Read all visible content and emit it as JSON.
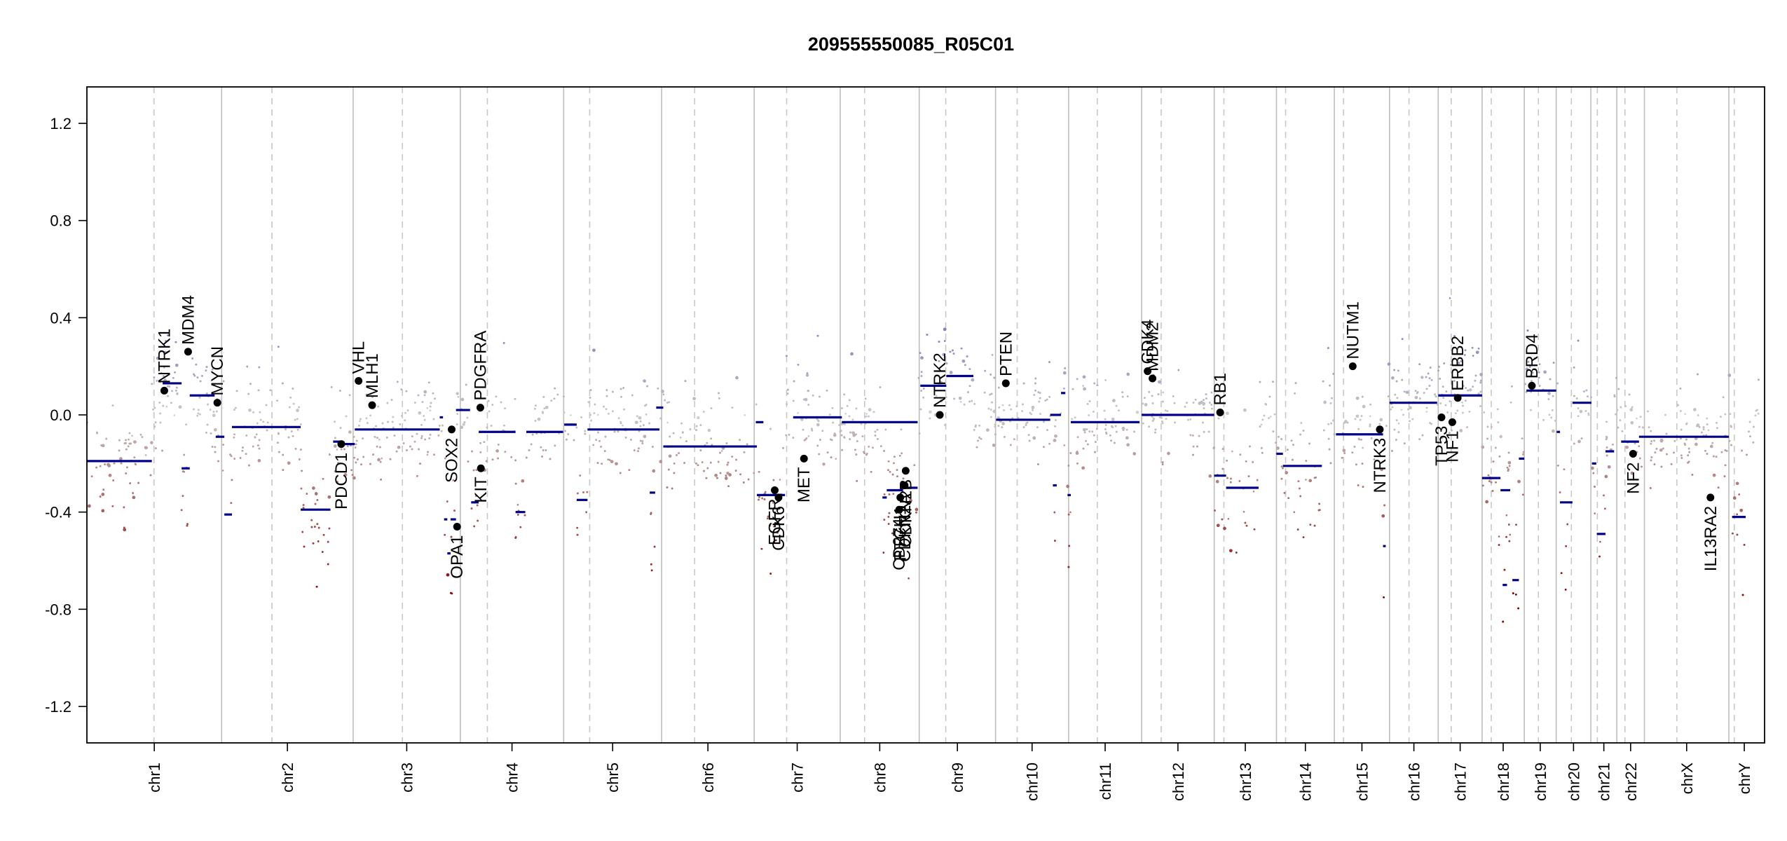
{
  "chart_data": {
    "type": "scatter",
    "title": "209555550085_R05C01",
    "xlabel": "",
    "ylabel": "",
    "ylim": [
      -1.35,
      1.35
    ],
    "yticks": [
      1.2,
      0.8,
      0.4,
      0.0,
      -0.4,
      -0.8,
      -1.2
    ],
    "ytick_labels": [
      "1.2",
      "0.8",
      "0.4",
      "0.0",
      "-0.4",
      "-0.8",
      "-1.2"
    ],
    "xlim": [
      0,
      3100
    ],
    "grid": false,
    "colors": {
      "segment": "#00008b",
      "gain": "#8080c0",
      "neutral": "#c8c8c8",
      "loss": "#8b0000",
      "boundary": "#bdbdbd",
      "centromere": "#c8c8c8",
      "gene_point": "#000000"
    },
    "chromosomes": [
      {
        "name": "chr1",
        "start": 0,
        "end": 249,
        "centro": 124
      },
      {
        "name": "chr2",
        "start": 249,
        "end": 492,
        "centro": 93
      },
      {
        "name": "chr3",
        "start": 492,
        "end": 690,
        "centro": 91
      },
      {
        "name": "chr4",
        "start": 690,
        "end": 881,
        "centro": 50
      },
      {
        "name": "chr5",
        "start": 881,
        "end": 1062,
        "centro": 48
      },
      {
        "name": "chr6",
        "start": 1062,
        "end": 1233,
        "centro": 61
      },
      {
        "name": "chr7",
        "start": 1233,
        "end": 1392,
        "centro": 60
      },
      {
        "name": "chr8",
        "start": 1392,
        "end": 1538,
        "centro": 45
      },
      {
        "name": "chr9",
        "start": 1538,
        "end": 1679,
        "centro": 49
      },
      {
        "name": "chr10",
        "start": 1679,
        "end": 1814,
        "centro": 40
      },
      {
        "name": "chr11",
        "start": 1814,
        "end": 1949,
        "centro": 53
      },
      {
        "name": "chr12",
        "start": 1949,
        "end": 2083,
        "centro": 36
      },
      {
        "name": "chr13",
        "start": 2083,
        "end": 2198,
        "centro": 18
      },
      {
        "name": "chr14",
        "start": 2198,
        "end": 2305,
        "centro": 17
      },
      {
        "name": "chr15",
        "start": 2305,
        "end": 2407,
        "centro": 17
      },
      {
        "name": "chr16",
        "start": 2407,
        "end": 2497,
        "centro": 36
      },
      {
        "name": "chr17",
        "start": 2497,
        "end": 2578,
        "centro": 24
      },
      {
        "name": "chr18",
        "start": 2578,
        "end": 2656,
        "centro": 17
      },
      {
        "name": "chr19",
        "start": 2656,
        "end": 2715,
        "centro": 26
      },
      {
        "name": "chr20",
        "start": 2715,
        "end": 2779,
        "centro": 28
      },
      {
        "name": "chr21",
        "start": 2779,
        "end": 2827,
        "centro": 12
      },
      {
        "name": "chr22",
        "start": 2827,
        "end": 2878,
        "centro": 15
      },
      {
        "name": "chrX",
        "start": 2878,
        "end": 3034,
        "centro": 60
      },
      {
        "name": "chrY",
        "start": 3034,
        "end": 3091,
        "centro": 10
      }
    ],
    "segments": [
      {
        "x0": 0,
        "x1": 120,
        "y": -0.19
      },
      {
        "x0": 140,
        "x1": 175,
        "y": 0.13
      },
      {
        "x0": 175,
        "x1": 190,
        "y": -0.22
      },
      {
        "x0": 190,
        "x1": 236,
        "y": 0.08
      },
      {
        "x0": 238,
        "x1": 254,
        "y": -0.09
      },
      {
        "x0": 254,
        "x1": 268,
        "y": -0.41
      },
      {
        "x0": 268,
        "x1": 395,
        "y": -0.05
      },
      {
        "x0": 395,
        "x1": 450,
        "y": -0.39
      },
      {
        "x0": 455,
        "x1": 470,
        "y": -0.11
      },
      {
        "x0": 470,
        "x1": 495,
        "y": -0.12
      },
      {
        "x0": 495,
        "x1": 652,
        "y": -0.06
      },
      {
        "x0": 652,
        "x1": 658,
        "y": -0.01
      },
      {
        "x0": 660,
        "x1": 666,
        "y": -0.43
      },
      {
        "x0": 666,
        "x1": 672,
        "y": -0.57
      },
      {
        "x0": 672,
        "x1": 682,
        "y": -0.43
      },
      {
        "x0": 682,
        "x1": 708,
        "y": 0.02
      },
      {
        "x0": 710,
        "x1": 724,
        "y": -0.36
      },
      {
        "x0": 724,
        "x1": 792,
        "y": -0.07
      },
      {
        "x0": 792,
        "x1": 810,
        "y": -0.4
      },
      {
        "x0": 812,
        "x1": 880,
        "y": -0.07
      },
      {
        "x0": 882,
        "x1": 905,
        "y": -0.04
      },
      {
        "x0": 905,
        "x1": 925,
        "y": -0.35
      },
      {
        "x0": 925,
        "x1": 1058,
        "y": -0.06
      },
      {
        "x0": 1040,
        "x1": 1050,
        "y": -0.32
      },
      {
        "x0": 1052,
        "x1": 1065,
        "y": 0.03
      },
      {
        "x0": 1065,
        "x1": 1238,
        "y": -0.13
      },
      {
        "x0": 1236,
        "x1": 1250,
        "y": -0.03
      },
      {
        "x0": 1238,
        "x1": 1290,
        "y": -0.33
      },
      {
        "x0": 1305,
        "x1": 1395,
        "y": -0.01
      },
      {
        "x0": 1395,
        "x1": 1535,
        "y": -0.03
      },
      {
        "x0": 1470,
        "x1": 1478,
        "y": -0.34
      },
      {
        "x0": 1478,
        "x1": 1508,
        "y": -0.31
      },
      {
        "x0": 1508,
        "x1": 1535,
        "y": -0.3
      },
      {
        "x0": 1540,
        "x1": 1588,
        "y": 0.12
      },
      {
        "x0": 1588,
        "x1": 1638,
        "y": 0.16
      },
      {
        "x0": 1680,
        "x1": 1780,
        "y": -0.02
      },
      {
        "x0": 1780,
        "x1": 1800,
        "y": 0.0
      },
      {
        "x0": 1785,
        "x1": 1792,
        "y": -0.29
      },
      {
        "x0": 1800,
        "x1": 1808,
        "y": 0.09
      },
      {
        "x0": 1812,
        "x1": 1818,
        "y": -0.33
      },
      {
        "x0": 1818,
        "x1": 1945,
        "y": -0.03
      },
      {
        "x0": 1949,
        "x1": 2083,
        "y": 0.0
      },
      {
        "x0": 2083,
        "x1": 2105,
        "y": -0.25
      },
      {
        "x0": 2105,
        "x1": 2165,
        "y": -0.3
      },
      {
        "x0": 2198,
        "x1": 2210,
        "y": -0.16
      },
      {
        "x0": 2210,
        "x1": 2282,
        "y": -0.21
      },
      {
        "x0": 2308,
        "x1": 2395,
        "y": -0.08
      },
      {
        "x0": 2395,
        "x1": 2400,
        "y": -0.54
      },
      {
        "x0": 2407,
        "x1": 2495,
        "y": 0.05
      },
      {
        "x0": 2497,
        "x1": 2578,
        "y": 0.08
      },
      {
        "x0": 2578,
        "x1": 2612,
        "y": -0.26
      },
      {
        "x0": 2612,
        "x1": 2630,
        "y": -0.31
      },
      {
        "x0": 2616,
        "x1": 2624,
        "y": -0.7
      },
      {
        "x0": 2634,
        "x1": 2646,
        "y": -0.68
      },
      {
        "x0": 2646,
        "x1": 2656,
        "y": -0.18
      },
      {
        "x0": 2660,
        "x1": 2715,
        "y": 0.1
      },
      {
        "x0": 2716,
        "x1": 2722,
        "y": -0.07
      },
      {
        "x0": 2722,
        "x1": 2745,
        "y": -0.36
      },
      {
        "x0": 2745,
        "x1": 2780,
        "y": 0.05
      },
      {
        "x0": 2781,
        "x1": 2789,
        "y": -0.2
      },
      {
        "x0": 2790,
        "x1": 2806,
        "y": -0.49
      },
      {
        "x0": 2806,
        "x1": 2822,
        "y": -0.15
      },
      {
        "x0": 2835,
        "x1": 2868,
        "y": -0.11
      },
      {
        "x0": 2868,
        "x1": 3034,
        "y": -0.09
      },
      {
        "x0": 3040,
        "x1": 3065,
        "y": -0.42
      }
    ],
    "genes": [
      {
        "name": "NTRK1",
        "x": 143,
        "y": 0.1
      },
      {
        "name": "MDM4",
        "x": 187,
        "y": 0.26
      },
      {
        "name": "MYCN",
        "x": 241,
        "y": 0.05
      },
      {
        "name": "PDCD1",
        "x": 470,
        "y": -0.12
      },
      {
        "name": "VHL",
        "x": 502,
        "y": 0.14
      },
      {
        "name": "MLH1",
        "x": 527,
        "y": 0.04
      },
      {
        "name": "SOX2",
        "x": 674,
        "y": -0.06
      },
      {
        "name": "OPA1",
        "x": 684,
        "y": -0.46
      },
      {
        "name": "PDGFRA",
        "x": 727,
        "y": 0.03
      },
      {
        "name": "KIT",
        "x": 728,
        "y": -0.22
      },
      {
        "name": "EGFR",
        "x": 1271,
        "y": -0.31
      },
      {
        "name": "CDK6",
        "x": 1278,
        "y": -0.34
      },
      {
        "name": "MET",
        "x": 1325,
        "y": -0.18
      },
      {
        "name": "CD274",
        "x": 1501,
        "y": -0.39
      },
      {
        "name": "CDKN2A",
        "x": 1511,
        "y": -0.29
      },
      {
        "name": "CDKN2B",
        "x": 1513,
        "y": -0.23
      },
      {
        "name": "PTCH1",
        "x": 1503,
        "y": -0.34
      },
      {
        "name": "NTRK2",
        "x": 1576,
        "y": 0.0
      },
      {
        "name": "PTEN",
        "x": 1698,
        "y": 0.13
      },
      {
        "name": "CDK4",
        "x": 1960,
        "y": 0.18
      },
      {
        "name": "MDM2",
        "x": 1969,
        "y": 0.15
      },
      {
        "name": "RB1",
        "x": 2094,
        "y": 0.01
      },
      {
        "name": "NUTM1",
        "x": 2339,
        "y": 0.2
      },
      {
        "name": "NTRK3",
        "x": 2389,
        "y": -0.06
      },
      {
        "name": "TP53",
        "x": 2503,
        "y": -0.01
      },
      {
        "name": "NF1",
        "x": 2523,
        "y": -0.03
      },
      {
        "name": "ERBB2",
        "x": 2533,
        "y": 0.07
      },
      {
        "name": "BRD4",
        "x": 2670,
        "y": 0.12
      },
      {
        "name": "NF2",
        "x": 2857,
        "y": -0.16
      },
      {
        "name": "IL13RA2",
        "x": 3000,
        "y": -0.34
      }
    ]
  }
}
